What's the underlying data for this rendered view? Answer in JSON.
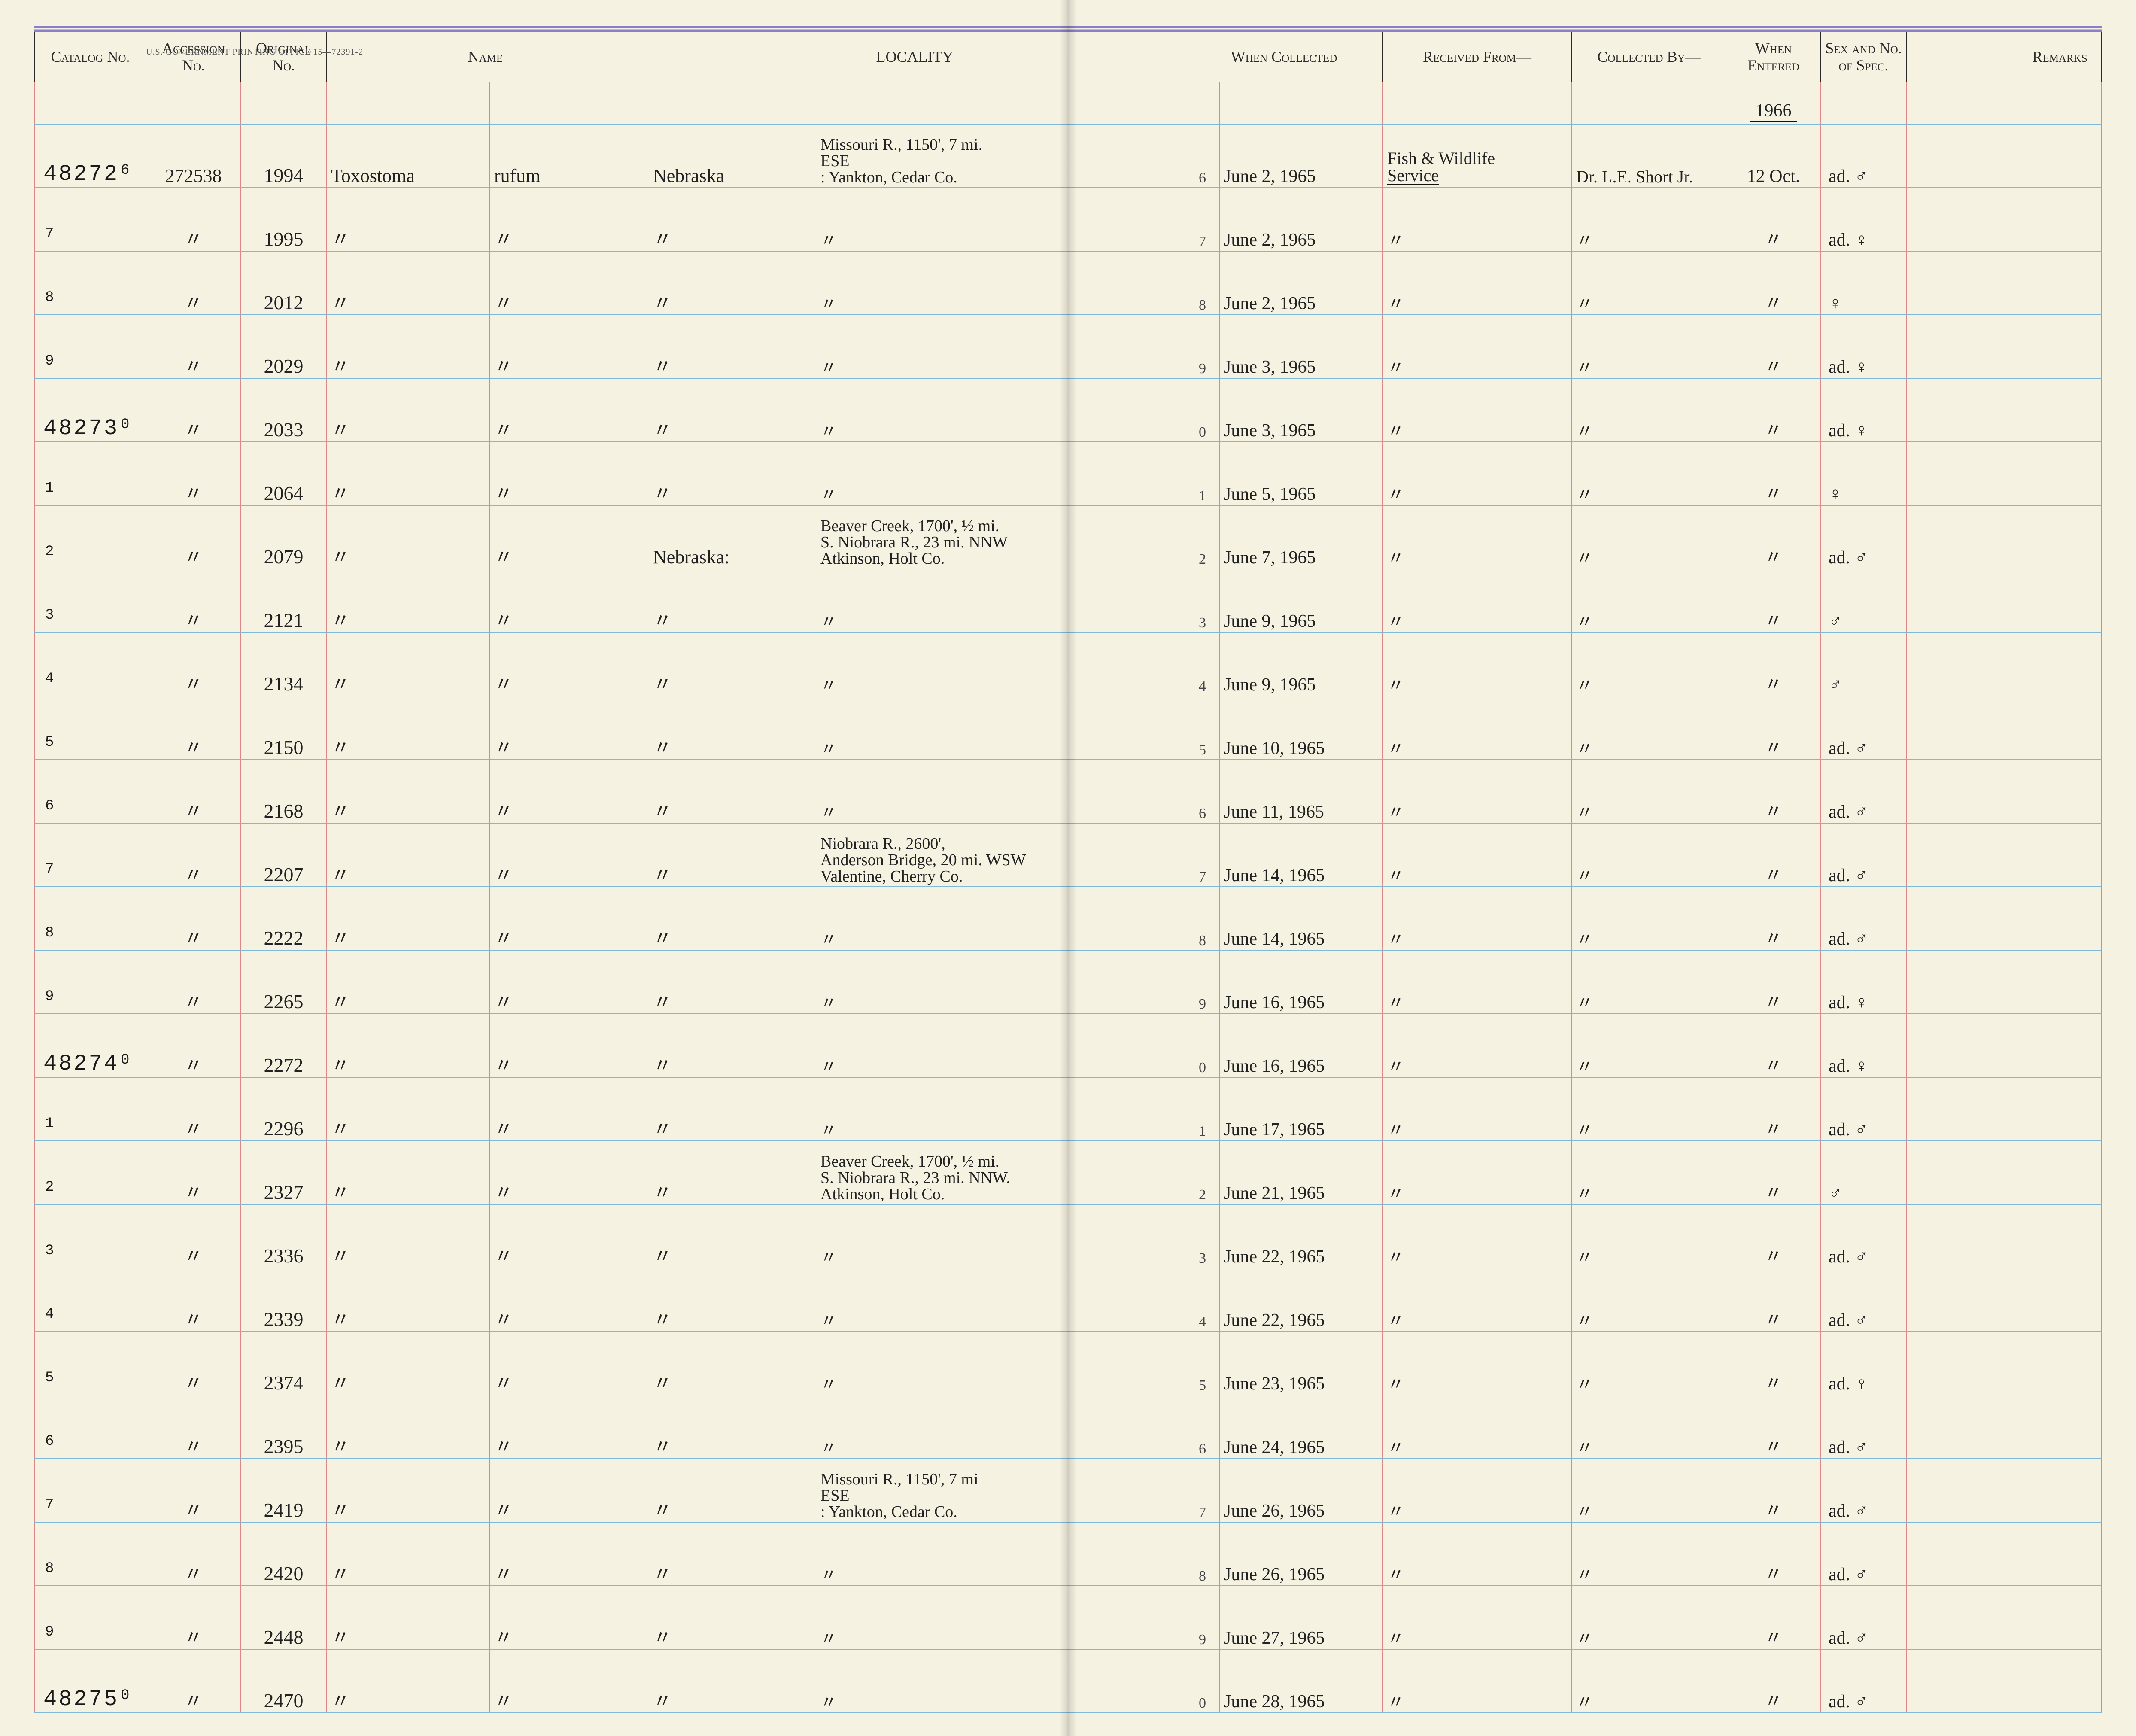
{
  "meta": {
    "gov_print_text": "U.S. GOVERNMENT PRINTING OFFICE   15—72391-2"
  },
  "headers": {
    "catalog": "Catalog\nNo.",
    "accession": "Accession\nNo.",
    "original": "Original\nNo.",
    "name": "Name",
    "locality": "LOCALITY",
    "when_collected": "When\nCollected",
    "received_from": "Received From—",
    "collected_by": "Collected By—",
    "when_entered": "When\nEntered",
    "sex_spec": "Sex and\nNo. of\nSpec.",
    "remarks": "Remarks"
  },
  "year_header": "1966",
  "colors": {
    "page_bg": "#f6f2e2",
    "rule_blue": "#7fb8d8",
    "col_red": "#d88",
    "header_ink": "#2a2a2a",
    "purple_band": "#8a7fc8",
    "handwriting": "#222"
  },
  "rows": [
    {
      "catalog_main": "48272",
      "catalog_suffix": "6",
      "accession": "272538",
      "original": "1994",
      "name_g": "Toxostoma",
      "name_s": "rufum",
      "loc_a": "Nebraska",
      "loc_b": "Missouri R., 1150', 7 mi.\nESE\n: Yankton, Cedar Co.",
      "when_a": "6",
      "when_b": "June 2, 1965",
      "received": "Fish & Wildlife\nService",
      "collected": "Dr. L.E. Short Jr.",
      "entered": "12 Oct.",
      "sex": "ad. ♂",
      "remarks": ""
    },
    {
      "catalog_main": "",
      "catalog_suffix": "7",
      "accession": "〃",
      "original": "1995",
      "name_g": "〃",
      "name_s": "〃",
      "loc_a": "〃",
      "loc_b": "〃",
      "when_a": "7",
      "when_b": "June 2, 1965",
      "received": "〃",
      "collected": "〃",
      "entered": "〃",
      "sex": "ad. ♀",
      "remarks": ""
    },
    {
      "catalog_main": "",
      "catalog_suffix": "8",
      "accession": "〃",
      "original": "2012",
      "name_g": "〃",
      "name_s": "〃",
      "loc_a": "〃",
      "loc_b": "〃",
      "when_a": "8",
      "when_b": "June 2, 1965",
      "received": "〃",
      "collected": "〃",
      "entered": "〃",
      "sex": "♀",
      "remarks": ""
    },
    {
      "catalog_main": "",
      "catalog_suffix": "9",
      "accession": "〃",
      "original": "2029",
      "name_g": "〃",
      "name_s": "〃",
      "loc_a": "〃",
      "loc_b": "〃",
      "when_a": "9",
      "when_b": "June 3, 1965",
      "received": "〃",
      "collected": "〃",
      "entered": "〃",
      "sex": "ad. ♀",
      "remarks": ""
    },
    {
      "catalog_main": "48273",
      "catalog_suffix": "0",
      "accession": "〃",
      "original": "2033",
      "name_g": "〃",
      "name_s": "〃",
      "loc_a": "〃",
      "loc_b": "〃",
      "when_a": "0",
      "when_b": "June 3, 1965",
      "received": "〃",
      "collected": "〃",
      "entered": "〃",
      "sex": "ad. ♀",
      "remarks": ""
    },
    {
      "catalog_main": "",
      "catalog_suffix": "1",
      "accession": "〃",
      "original": "2064",
      "name_g": "〃",
      "name_s": "〃",
      "loc_a": "〃",
      "loc_b": "〃",
      "when_a": "1",
      "when_b": "June 5, 1965",
      "received": "〃",
      "collected": "〃",
      "entered": "〃",
      "sex": "♀",
      "remarks": ""
    },
    {
      "catalog_main": "",
      "catalog_suffix": "2",
      "accession": "〃",
      "original": "2079",
      "name_g": "〃",
      "name_s": "〃",
      "loc_a": "Nebraska:",
      "loc_b": "Beaver Creek, 1700', ½ mi.\nS. Niobrara R., 23 mi. NNW\nAtkinson, Holt Co.",
      "when_a": "2",
      "when_b": "June 7, 1965",
      "received": "〃",
      "collected": "〃",
      "entered": "〃",
      "sex": "ad. ♂",
      "remarks": ""
    },
    {
      "catalog_main": "",
      "catalog_suffix": "3",
      "accession": "〃",
      "original": "2121",
      "name_g": "〃",
      "name_s": "〃",
      "loc_a": "〃",
      "loc_b": "〃",
      "when_a": "3",
      "when_b": "June 9, 1965",
      "received": "〃",
      "collected": "〃",
      "entered": "〃",
      "sex": "♂",
      "remarks": ""
    },
    {
      "catalog_main": "",
      "catalog_suffix": "4",
      "accession": "〃",
      "original": "2134",
      "name_g": "〃",
      "name_s": "〃",
      "loc_a": "〃",
      "loc_b": "〃",
      "when_a": "4",
      "when_b": "June 9, 1965",
      "received": "〃",
      "collected": "〃",
      "entered": "〃",
      "sex": "♂",
      "remarks": ""
    },
    {
      "catalog_main": "",
      "catalog_suffix": "5",
      "accession": "〃",
      "original": "2150",
      "name_g": "〃",
      "name_s": "〃",
      "loc_a": "〃",
      "loc_b": "〃",
      "when_a": "5",
      "when_b": "June 10, 1965",
      "received": "〃",
      "collected": "〃",
      "entered": "〃",
      "sex": "ad. ♂",
      "remarks": ""
    },
    {
      "catalog_main": "",
      "catalog_suffix": "6",
      "accession": "〃",
      "original": "2168",
      "name_g": "〃",
      "name_s": "〃",
      "loc_a": "〃",
      "loc_b": "〃",
      "when_a": "6",
      "when_b": "June 11, 1965",
      "received": "〃",
      "collected": "〃",
      "entered": "〃",
      "sex": "ad. ♂",
      "remarks": ""
    },
    {
      "catalog_main": "",
      "catalog_suffix": "7",
      "accession": "〃",
      "original": "2207",
      "name_g": "〃",
      "name_s": "〃",
      "loc_a": "〃",
      "loc_b": "Niobrara R., 2600',\nAnderson Bridge, 20 mi. WSW\nValentine, Cherry Co.",
      "when_a": "7",
      "when_b": "June 14, 1965",
      "received": "〃",
      "collected": "〃",
      "entered": "〃",
      "sex": "ad. ♂",
      "remarks": ""
    },
    {
      "catalog_main": "",
      "catalog_suffix": "8",
      "accession": "〃",
      "original": "2222",
      "name_g": "〃",
      "name_s": "〃",
      "loc_a": "〃",
      "loc_b": "〃",
      "when_a": "8",
      "when_b": "June 14, 1965",
      "received": "〃",
      "collected": "〃",
      "entered": "〃",
      "sex": "ad. ♂",
      "remarks": ""
    },
    {
      "catalog_main": "",
      "catalog_suffix": "9",
      "accession": "〃",
      "original": "2265",
      "name_g": "〃",
      "name_s": "〃",
      "loc_a": "〃",
      "loc_b": "〃",
      "when_a": "9",
      "when_b": "June 16, 1965",
      "received": "〃",
      "collected": "〃",
      "entered": "〃",
      "sex": "ad. ♀",
      "remarks": ""
    },
    {
      "catalog_main": "48274",
      "catalog_suffix": "0",
      "accession": "〃",
      "original": "2272",
      "name_g": "〃",
      "name_s": "〃",
      "loc_a": "〃",
      "loc_b": "〃",
      "when_a": "0",
      "when_b": "June 16, 1965",
      "received": "〃",
      "collected": "〃",
      "entered": "〃",
      "sex": "ad. ♀",
      "remarks": ""
    },
    {
      "catalog_main": "",
      "catalog_suffix": "1",
      "accession": "〃",
      "original": "2296",
      "name_g": "〃",
      "name_s": "〃",
      "loc_a": "〃",
      "loc_b": "〃",
      "when_a": "1",
      "when_b": "June 17, 1965",
      "received": "〃",
      "collected": "〃",
      "entered": "〃",
      "sex": "ad. ♂",
      "remarks": ""
    },
    {
      "catalog_main": "",
      "catalog_suffix": "2",
      "accession": "〃",
      "original": "2327",
      "name_g": "〃",
      "name_s": "〃",
      "loc_a": "〃",
      "loc_b": "Beaver Creek, 1700', ½ mi.\nS. Niobrara R., 23 mi. NNW.\nAtkinson, Holt Co.",
      "when_a": "2",
      "when_b": "June 21, 1965",
      "received": "〃",
      "collected": "〃",
      "entered": "〃",
      "sex": "♂",
      "remarks": ""
    },
    {
      "catalog_main": "",
      "catalog_suffix": "3",
      "accession": "〃",
      "original": "2336",
      "name_g": "〃",
      "name_s": "〃",
      "loc_a": "〃",
      "loc_b": "〃",
      "when_a": "3",
      "when_b": "June 22, 1965",
      "received": "〃",
      "collected": "〃",
      "entered": "〃",
      "sex": "ad. ♂",
      "remarks": ""
    },
    {
      "catalog_main": "",
      "catalog_suffix": "4",
      "accession": "〃",
      "original": "2339",
      "name_g": "〃",
      "name_s": "〃",
      "loc_a": "〃",
      "loc_b": "〃",
      "when_a": "4",
      "when_b": "June 22, 1965",
      "received": "〃",
      "collected": "〃",
      "entered": "〃",
      "sex": "ad. ♂",
      "remarks": ""
    },
    {
      "catalog_main": "",
      "catalog_suffix": "5",
      "accession": "〃",
      "original": "2374",
      "name_g": "〃",
      "name_s": "〃",
      "loc_a": "〃",
      "loc_b": "〃",
      "when_a": "5",
      "when_b": "June 23, 1965",
      "received": "〃",
      "collected": "〃",
      "entered": "〃",
      "sex": "ad. ♀",
      "remarks": ""
    },
    {
      "catalog_main": "",
      "catalog_suffix": "6",
      "accession": "〃",
      "original": "2395",
      "name_g": "〃",
      "name_s": "〃",
      "loc_a": "〃",
      "loc_b": "〃",
      "when_a": "6",
      "when_b": "June 24, 1965",
      "received": "〃",
      "collected": "〃",
      "entered": "〃",
      "sex": "ad. ♂",
      "remarks": ""
    },
    {
      "catalog_main": "",
      "catalog_suffix": "7",
      "accession": "〃",
      "original": "2419",
      "name_g": "〃",
      "name_s": "〃",
      "loc_a": "〃",
      "loc_b": "Missouri R., 1150', 7 mi\nESE\n: Yankton, Cedar Co.",
      "when_a": "7",
      "when_b": "June 26, 1965",
      "received": "〃",
      "collected": "〃",
      "entered": "〃",
      "sex": "ad. ♂",
      "remarks": ""
    },
    {
      "catalog_main": "",
      "catalog_suffix": "8",
      "accession": "〃",
      "original": "2420",
      "name_g": "〃",
      "name_s": "〃",
      "loc_a": "〃",
      "loc_b": "〃",
      "when_a": "8",
      "when_b": "June 26, 1965",
      "received": "〃",
      "collected": "〃",
      "entered": "〃",
      "sex": "ad. ♂",
      "remarks": ""
    },
    {
      "catalog_main": "",
      "catalog_suffix": "9",
      "accession": "〃",
      "original": "2448",
      "name_g": "〃",
      "name_s": "〃",
      "loc_a": "〃",
      "loc_b": "〃",
      "when_a": "9",
      "when_b": "June 27, 1965",
      "received": "〃",
      "collected": "〃",
      "entered": "〃",
      "sex": "ad. ♂",
      "remarks": ""
    },
    {
      "catalog_main": "48275",
      "catalog_suffix": "0",
      "accession": "〃",
      "original": "2470",
      "name_g": "〃",
      "name_s": "〃",
      "loc_a": "〃",
      "loc_b": "〃",
      "when_a": "0",
      "when_b": "June 28, 1965",
      "received": "〃",
      "collected": "〃",
      "entered": "〃",
      "sex": "ad. ♂",
      "remarks": ""
    }
  ]
}
